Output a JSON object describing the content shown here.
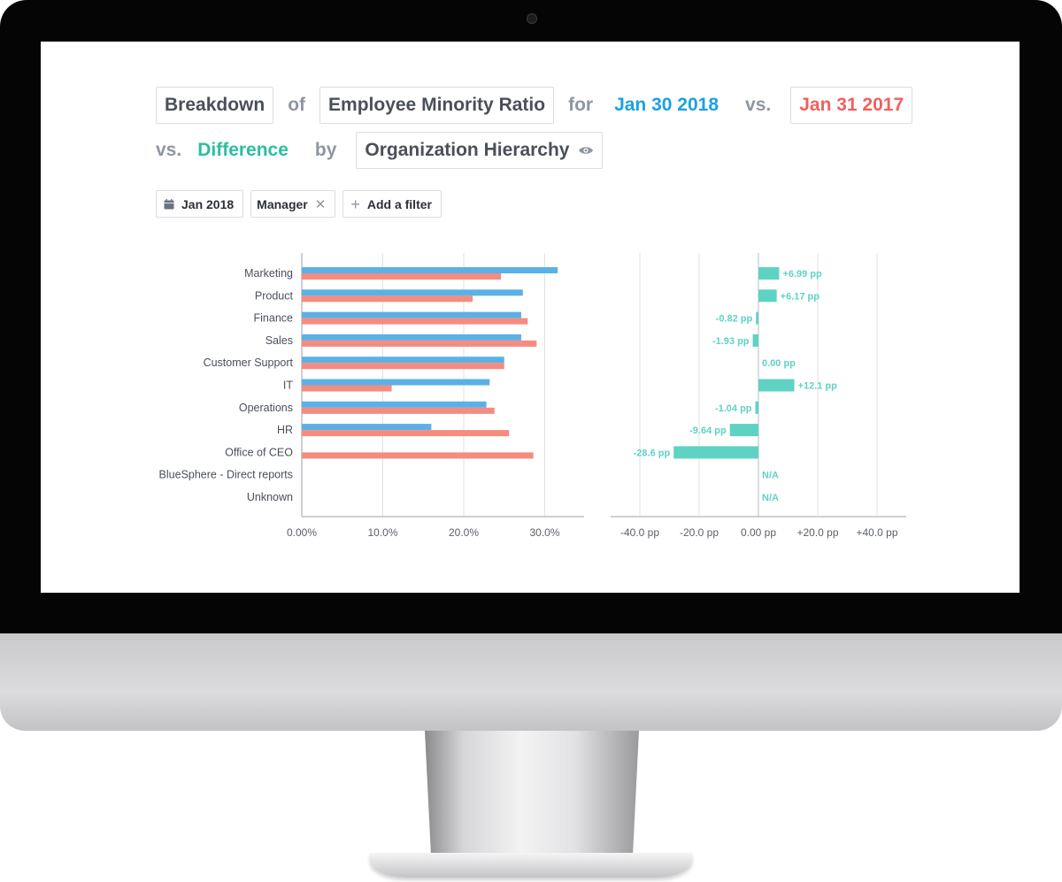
{
  "query": {
    "breakdown": "Breakdown",
    "of": "of",
    "metric": "Employee Minority Ratio",
    "for": "for",
    "date_current": "Jan 30 2018",
    "vs1": "vs.",
    "date_compare": "Jan 31 2017",
    "vs2": "vs.",
    "difference": "Difference",
    "by": "by",
    "dimension": "Organization Hierarchy"
  },
  "filters": {
    "date": "Jan 2018",
    "manager": "Manager",
    "add": "Add a filter"
  },
  "colors": {
    "current": "#5bb1e6",
    "compare": "#f68b80",
    "difference": "#5ed3c4"
  },
  "chart_data": [
    {
      "type": "bar",
      "orientation": "horizontal",
      "categories": [
        "Marketing",
        "Product",
        "Finance",
        "Sales",
        "Customer Support",
        "IT",
        "Operations",
        "HR",
        "Office of CEO",
        "BlueSphere - Direct reports",
        "Unknown"
      ],
      "series": [
        {
          "name": "Jan 30 2018",
          "values": [
            31.6,
            27.3,
            27.1,
            27.1,
            25.0,
            23.2,
            22.8,
            16.0,
            0.0,
            null,
            null
          ]
        },
        {
          "name": "Jan 31 2017",
          "values": [
            24.6,
            21.1,
            27.9,
            29.0,
            25.0,
            11.1,
            23.8,
            25.6,
            28.6,
            null,
            null
          ]
        }
      ],
      "xlim": [
        0,
        35
      ],
      "ticks": [
        "0.00%",
        "10.0%",
        "20.0%",
        "30.0%"
      ],
      "tick_values": [
        0,
        10,
        20,
        30
      ]
    },
    {
      "type": "bar",
      "orientation": "horizontal",
      "categories": [
        "Marketing",
        "Product",
        "Finance",
        "Sales",
        "Customer Support",
        "IT",
        "Operations",
        "HR",
        "Office of CEO",
        "BlueSphere - Direct reports",
        "Unknown"
      ],
      "values": [
        6.99,
        6.17,
        -0.82,
        -1.93,
        0.0,
        12.1,
        -1.04,
        -9.64,
        -28.6,
        null,
        null
      ],
      "labels": [
        "+6.99 pp",
        "+6.17 pp",
        "-0.82 pp",
        "-1.93 pp",
        "0.00 pp",
        "+12.1 pp",
        "-1.04 pp",
        "-9.64 pp",
        "-28.6 pp",
        "N/A",
        "N/A"
      ],
      "xlim": [
        -50,
        50
      ],
      "ticks": [
        "-40.0 pp",
        "-20.0 pp",
        "0.00 pp",
        "+20.0 pp",
        "+40.0 pp"
      ],
      "tick_values": [
        -40,
        -20,
        0,
        20,
        40
      ]
    }
  ]
}
